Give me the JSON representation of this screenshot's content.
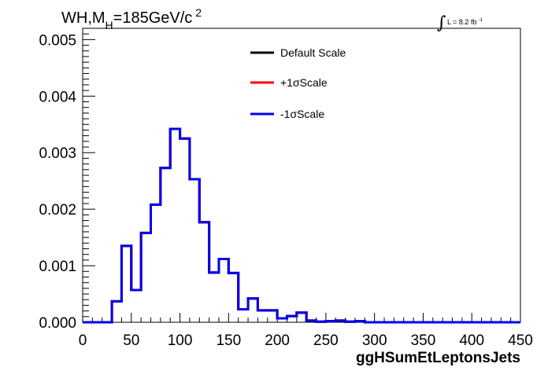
{
  "chart_data": {
    "type": "line",
    "title": "WH,M_H=185GeV/c^2",
    "title_parts": {
      "a": "WH,M",
      "sub": "H",
      "b": "=185GeV/c",
      "sup": "2"
    },
    "lumi": {
      "prefix": "L = 8.2 fb",
      "sup": "-1"
    },
    "xlabel": "ggHSumEtLeptonsJets",
    "ylabel": "",
    "xlim": [
      0,
      450
    ],
    "ylim": [
      0,
      0.0052
    ],
    "x_ticks": [
      0,
      50,
      100,
      150,
      200,
      250,
      300,
      350,
      400,
      450
    ],
    "y_ticks": [
      0.0,
      0.001,
      0.002,
      0.003,
      0.004,
      0.005
    ],
    "y_tick_labels": [
      "0.000",
      "0.001",
      "0.002",
      "0.003",
      "0.004",
      "0.005"
    ],
    "grid": false,
    "legend_position": "top-center",
    "bin_edges": [
      0,
      10,
      20,
      30,
      40,
      50,
      60,
      70,
      80,
      90,
      100,
      110,
      120,
      130,
      140,
      150,
      160,
      170,
      180,
      190,
      200,
      210,
      220,
      230,
      240,
      250,
      260,
      270,
      280,
      290,
      300,
      310,
      320,
      330,
      340,
      350,
      360,
      370,
      380,
      390,
      400,
      410,
      420,
      430,
      440,
      450
    ],
    "series": [
      {
        "name": "Default Scale",
        "color": "#000000",
        "values": [
          0,
          0,
          0,
          0.00037,
          0.00135,
          0.00057,
          0.00158,
          0.00208,
          0.00273,
          0.00342,
          0.00325,
          0.00253,
          0.00177,
          0.00088,
          0.00112,
          0.00087,
          0.00023,
          0.00042,
          0.00021,
          0.00021,
          7e-05,
          0.00011,
          0.00017,
          3e-05,
          1e-05,
          2e-05,
          3e-05,
          1e-05,
          2e-05,
          0,
          0,
          0,
          0,
          0,
          0,
          0,
          0,
          0,
          0,
          0,
          0,
          0,
          0,
          0,
          0
        ]
      },
      {
        "name": "+1σScale",
        "color": "#ff0000",
        "values": [
          0,
          0,
          0,
          0.00037,
          0.00135,
          0.00057,
          0.00158,
          0.00208,
          0.00273,
          0.00342,
          0.00325,
          0.00253,
          0.00177,
          0.00088,
          0.00112,
          0.00087,
          0.00023,
          0.00042,
          0.00021,
          0.00021,
          7e-05,
          0.00011,
          0.00017,
          3e-05,
          1e-05,
          2e-05,
          3e-05,
          1e-05,
          2e-05,
          0,
          0,
          0,
          0,
          0,
          0,
          0,
          0,
          0,
          0,
          0,
          0,
          0,
          0,
          0,
          0
        ]
      },
      {
        "name": "-1σScale",
        "color": "#0000ee",
        "values": [
          0,
          0,
          0,
          0.00037,
          0.00135,
          0.00057,
          0.00158,
          0.00208,
          0.00273,
          0.00342,
          0.00325,
          0.00253,
          0.00177,
          0.00088,
          0.00112,
          0.00087,
          0.00023,
          0.00042,
          0.00021,
          0.00021,
          7e-05,
          0.00011,
          0.00017,
          3e-05,
          1e-05,
          2e-05,
          3e-05,
          1e-05,
          2e-05,
          0,
          0,
          0,
          0,
          0,
          0,
          0,
          0,
          0,
          0,
          0,
          0,
          0,
          0,
          0,
          0
        ]
      }
    ]
  }
}
